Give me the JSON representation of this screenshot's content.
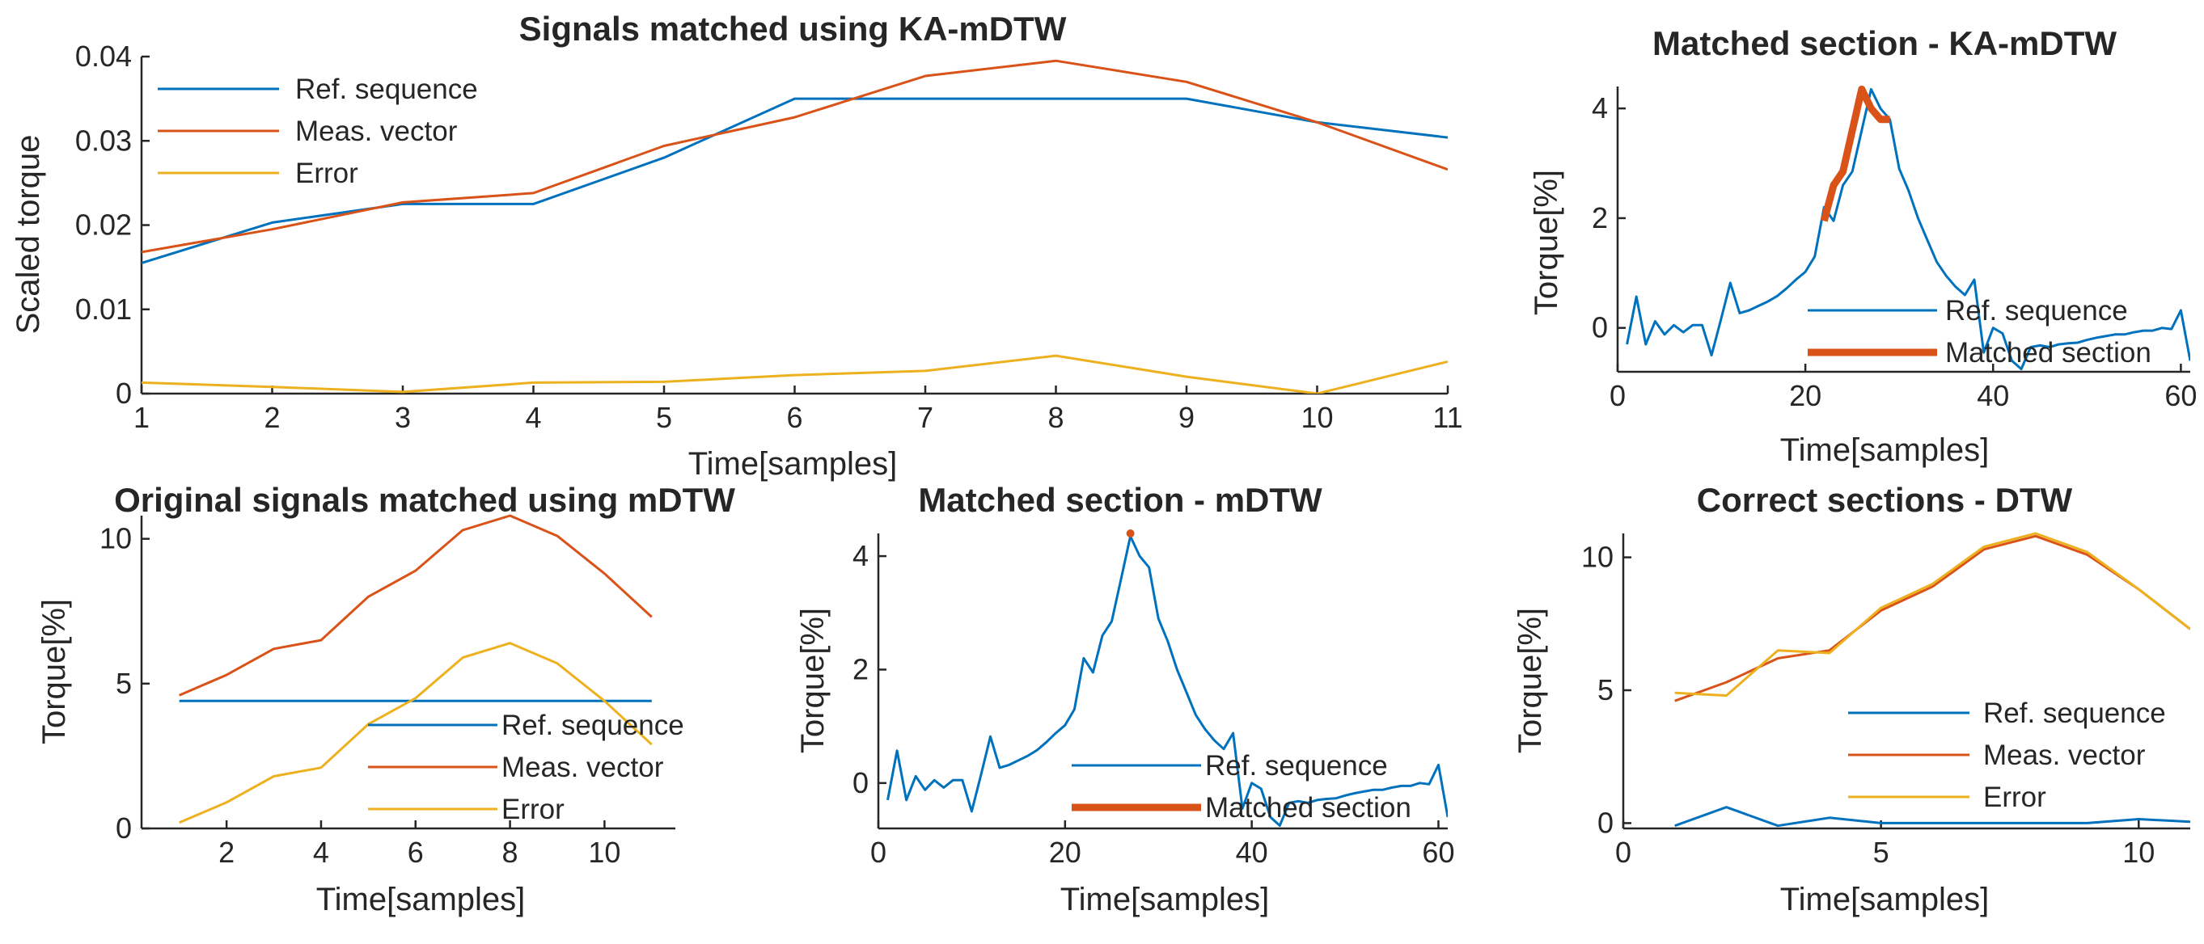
{
  "colors": {
    "blue": "#0072BD",
    "orange": "#D95319",
    "yellow": "#EDB120",
    "axis": "#262626"
  },
  "chart_data": [
    {
      "id": "ka_mdtw_signals",
      "type": "line",
      "title": "Signals matched using KA-mDTW",
      "xlabel": "Time[samples]",
      "ylabel": "Scaled torque",
      "xlim": [
        1,
        11
      ],
      "ylim": [
        0,
        0.04
      ],
      "xticks": [
        1,
        2,
        3,
        4,
        5,
        6,
        7,
        8,
        9,
        10,
        11
      ],
      "yticks": [
        0,
        0.01,
        0.02,
        0.03,
        0.04
      ],
      "grid": false,
      "legend_position": "top-left",
      "series": [
        {
          "name": "Ref. sequence",
          "color": "blue",
          "width": 3,
          "x": [
            1,
            2,
            3,
            4,
            5,
            6,
            7,
            8,
            9,
            10,
            11
          ],
          "y": [
            0.0155,
            0.0203,
            0.0225,
            0.0225,
            0.028,
            0.035,
            0.035,
            0.035,
            0.035,
            0.0322,
            0.0304
          ]
        },
        {
          "name": "Meas. vector",
          "color": "orange",
          "width": 3,
          "x": [
            1,
            2,
            3,
            4,
            5,
            6,
            7,
            8,
            9,
            10,
            11
          ],
          "y": [
            0.0168,
            0.0195,
            0.0227,
            0.0238,
            0.0294,
            0.0328,
            0.0377,
            0.0395,
            0.037,
            0.0322,
            0.0266
          ]
        },
        {
          "name": "Error",
          "color": "yellow",
          "width": 3,
          "x": [
            1,
            2,
            3,
            4,
            5,
            6,
            7,
            8,
            9,
            10,
            11
          ],
          "y": [
            0.0013,
            0.0008,
            0.0002,
            0.0013,
            0.0014,
            0.0022,
            0.0027,
            0.0045,
            0.002,
            0.0,
            0.0038
          ]
        }
      ]
    },
    {
      "id": "ka_mdtw_section",
      "type": "line",
      "title": "Matched section - KA-mDTW",
      "xlabel": "Time[samples]",
      "ylabel": "Torque[%]",
      "xlim": [
        0,
        61
      ],
      "ylim": [
        -0.8,
        4.4
      ],
      "xticks": [
        0,
        20,
        40,
        60
      ],
      "yticks": [
        0,
        2,
        4
      ],
      "grid": false,
      "legend_position": "bottom-right",
      "series": [
        {
          "name": "Ref. sequence",
          "color": "blue",
          "width": 3,
          "x": [
            1,
            2,
            3,
            4,
            5,
            6,
            7,
            8,
            9,
            10,
            11,
            12,
            13,
            14,
            15,
            16,
            17,
            18,
            19,
            20,
            21,
            22,
            23,
            24,
            25,
            26,
            27,
            28,
            29,
            30,
            31,
            32,
            33,
            34,
            35,
            36,
            37,
            38,
            39,
            40,
            41,
            42,
            43,
            44,
            45,
            46,
            47,
            48,
            49,
            50,
            51,
            52,
            53,
            54,
            55,
            56,
            57,
            58,
            59,
            60,
            61
          ],
          "y": [
            -0.3,
            0.57,
            -0.3,
            0.12,
            -0.12,
            0.05,
            -0.08,
            0.05,
            0.05,
            -0.5,
            0.15,
            0.82,
            0.27,
            0.32,
            0.4,
            0.48,
            0.58,
            0.72,
            0.88,
            1.02,
            1.3,
            2.2,
            1.95,
            2.6,
            2.85,
            3.6,
            4.35,
            4.0,
            3.8,
            2.9,
            2.5,
            2.0,
            1.6,
            1.2,
            0.95,
            0.75,
            0.6,
            0.88,
            -0.45,
            0.0,
            -0.1,
            -0.6,
            -0.75,
            -0.35,
            -0.32,
            -0.35,
            -0.3,
            -0.28,
            -0.27,
            -0.22,
            -0.18,
            -0.15,
            -0.12,
            -0.12,
            -0.08,
            -0.05,
            -0.05,
            0.0,
            -0.02,
            0.32,
            -0.6
          ]
        },
        {
          "name": "Matched section",
          "color": "orange",
          "width": 9,
          "x": [
            22,
            23,
            24,
            25,
            26,
            27,
            28,
            29
          ],
          "y": [
            1.95,
            2.6,
            2.85,
            3.6,
            4.35,
            4.0,
            3.8,
            3.8
          ]
        }
      ]
    },
    {
      "id": "mdtw_signals",
      "type": "line",
      "title": "Original signals matched using mDTW",
      "xlabel": "Time[samples]",
      "ylabel": "Torque[%]",
      "xlim": [
        0.2,
        11.5
      ],
      "ylim": [
        0,
        10.8
      ],
      "xticks": [
        2,
        4,
        6,
        8,
        10
      ],
      "yticks": [
        0,
        5,
        10
      ],
      "grid": false,
      "legend_position": "bottom-right",
      "series": [
        {
          "name": "Ref. sequence",
          "color": "blue",
          "width": 3,
          "x": [
            1,
            2,
            3,
            4,
            5,
            6,
            7,
            8,
            9,
            10,
            11
          ],
          "y": [
            4.4,
            4.4,
            4.4,
            4.4,
            4.4,
            4.4,
            4.4,
            4.4,
            4.4,
            4.4,
            4.4
          ]
        },
        {
          "name": "Meas. vector",
          "color": "orange",
          "width": 3,
          "x": [
            1,
            2,
            3,
            4,
            5,
            6,
            7,
            8,
            9,
            10,
            11
          ],
          "y": [
            4.6,
            5.3,
            6.2,
            6.5,
            8.0,
            8.9,
            10.3,
            10.8,
            10.1,
            8.8,
            7.3
          ]
        },
        {
          "name": "Error",
          "color": "yellow",
          "width": 3,
          "x": [
            1,
            2,
            3,
            4,
            5,
            6,
            7,
            8,
            9,
            10,
            11
          ],
          "y": [
            0.2,
            0.9,
            1.8,
            2.1,
            3.6,
            4.5,
            5.9,
            6.4,
            5.7,
            4.4,
            2.9
          ]
        }
      ]
    },
    {
      "id": "mdtw_section",
      "type": "line",
      "title": "Matched section - mDTW",
      "xlabel": "Time[samples]",
      "ylabel": "Torque[%]",
      "xlim": [
        0,
        61
      ],
      "ylim": [
        -0.8,
        4.4
      ],
      "xticks": [
        0,
        20,
        40,
        60
      ],
      "yticks": [
        0,
        2,
        4
      ],
      "grid": false,
      "legend_position": "bottom-right",
      "series": [
        {
          "name": "Ref. sequence",
          "color": "blue",
          "width": 3,
          "x": [
            1,
            2,
            3,
            4,
            5,
            6,
            7,
            8,
            9,
            10,
            11,
            12,
            13,
            14,
            15,
            16,
            17,
            18,
            19,
            20,
            21,
            22,
            23,
            24,
            25,
            26,
            27,
            28,
            29,
            30,
            31,
            32,
            33,
            34,
            35,
            36,
            37,
            38,
            39,
            40,
            41,
            42,
            43,
            44,
            45,
            46,
            47,
            48,
            49,
            50,
            51,
            52,
            53,
            54,
            55,
            56,
            57,
            58,
            59,
            60,
            61
          ],
          "y": [
            -0.3,
            0.57,
            -0.3,
            0.12,
            -0.12,
            0.05,
            -0.08,
            0.05,
            0.05,
            -0.5,
            0.15,
            0.82,
            0.27,
            0.32,
            0.4,
            0.48,
            0.58,
            0.72,
            0.88,
            1.02,
            1.3,
            2.2,
            1.95,
            2.6,
            2.85,
            3.6,
            4.35,
            4.0,
            3.8,
            2.9,
            2.5,
            2.0,
            1.6,
            1.2,
            0.95,
            0.75,
            0.6,
            0.88,
            -0.45,
            0.0,
            -0.1,
            -0.6,
            -0.75,
            -0.35,
            -0.32,
            -0.35,
            -0.3,
            -0.28,
            -0.27,
            -0.22,
            -0.18,
            -0.15,
            -0.12,
            -0.12,
            -0.08,
            -0.05,
            -0.05,
            0.0,
            -0.02,
            0.32,
            -0.6
          ]
        },
        {
          "name": "Matched section",
          "color": "orange",
          "width": 9,
          "marker": true,
          "x": [
            27
          ],
          "y": [
            4.4
          ]
        }
      ]
    },
    {
      "id": "dtw_sections",
      "type": "line",
      "title": "Correct sections - DTW",
      "xlabel": "Time[samples]",
      "ylabel": "Torque[%]",
      "xlim": [
        0,
        11
      ],
      "ylim": [
        -0.2,
        10.9
      ],
      "xticks": [
        0,
        5,
        10
      ],
      "yticks": [
        0,
        5,
        10
      ],
      "grid": false,
      "legend_position": "bottom-right",
      "series": [
        {
          "name": "Ref. sequence",
          "color": "blue",
          "width": 3,
          "x": [
            1,
            2,
            3,
            4,
            5,
            6,
            7,
            8,
            9,
            10,
            11
          ],
          "y": [
            -0.1,
            0.6,
            -0.1,
            0.2,
            0.0,
            0.0,
            0.0,
            0.0,
            0.0,
            0.15,
            0.05
          ]
        },
        {
          "name": "Meas. vector",
          "color": "orange",
          "width": 3,
          "x": [
            1,
            2,
            3,
            4,
            5,
            6,
            7,
            8,
            9,
            10,
            11
          ],
          "y": [
            4.6,
            5.3,
            6.2,
            6.5,
            8.0,
            8.9,
            10.3,
            10.8,
            10.1,
            8.8,
            7.3
          ]
        },
        {
          "name": "Error",
          "color": "yellow",
          "width": 3,
          "x": [
            1,
            2,
            3,
            4,
            5,
            6,
            7,
            8,
            9,
            10,
            11
          ],
          "y": [
            4.9,
            4.8,
            6.5,
            6.4,
            8.1,
            9.0,
            10.4,
            10.9,
            10.2,
            8.8,
            7.3
          ]
        }
      ]
    }
  ]
}
